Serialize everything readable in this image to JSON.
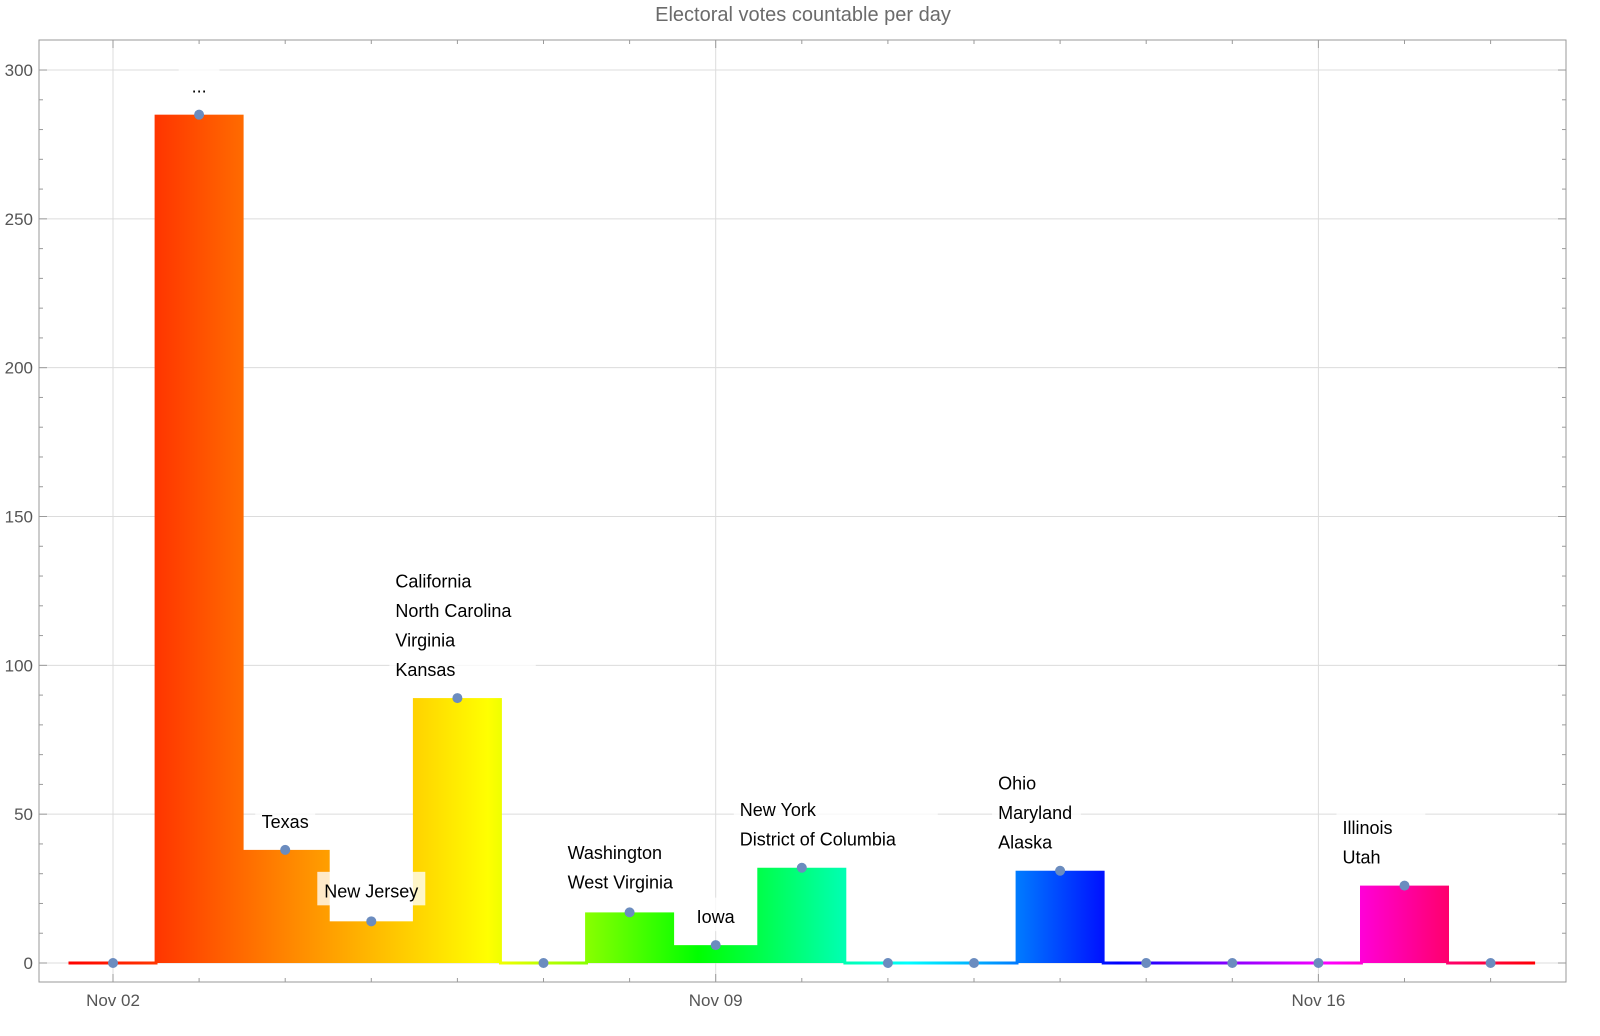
{
  "chart_data": {
    "type": "bar",
    "style": "step histogram with rainbow color gradient and point markers",
    "title": "Electoral votes countable per day",
    "xlabel": "",
    "ylabel": "",
    "x_tick_labels": [
      "Nov 02",
      "Nov 09",
      "Nov 16"
    ],
    "y_ticks": [
      0,
      50,
      100,
      150,
      200,
      250,
      300
    ],
    "ylim": [
      -6,
      310
    ],
    "xlim": [
      "Nov 01",
      "Nov 19"
    ],
    "grid": true,
    "categories": [
      "Nov 02",
      "Nov 03",
      "Nov 04",
      "Nov 05",
      "Nov 06",
      "Nov 07",
      "Nov 08",
      "Nov 09",
      "Nov 10",
      "Nov 11",
      "Nov 12",
      "Nov 13",
      "Nov 14",
      "Nov 15",
      "Nov 16",
      "Nov 17",
      "Nov 18"
    ],
    "values": [
      0,
      285,
      38,
      14,
      89,
      0,
      17,
      6,
      32,
      0,
      0,
      31,
      0,
      0,
      0,
      26,
      0
    ],
    "annotations": [
      {
        "date": "Nov 03",
        "lines": [
          "..."
        ]
      },
      {
        "date": "Nov 04",
        "lines": [
          "Texas"
        ]
      },
      {
        "date": "Nov 05",
        "lines": [
          "New Jersey"
        ]
      },
      {
        "date": "Nov 06",
        "lines": [
          "California",
          "North Carolina",
          "Virginia",
          "Kansas"
        ]
      },
      {
        "date": "Nov 08",
        "lines": [
          "Washington",
          "West Virginia"
        ]
      },
      {
        "date": "Nov 09",
        "lines": [
          "Iowa"
        ]
      },
      {
        "date": "Nov 10",
        "lines": [
          "New York",
          "District of Columbia"
        ]
      },
      {
        "date": "Nov 13",
        "lines": [
          "Ohio",
          "Maryland",
          "Alaska"
        ]
      },
      {
        "date": "Nov 17",
        "lines": [
          "Illinois",
          "Utah"
        ]
      }
    ],
    "colors": {
      "marker": "#6b8cbf",
      "gradient": [
        "#ff0000",
        "#ff8000",
        "#ffff00",
        "#00ff00",
        "#00ffff",
        "#0000ff",
        "#ff00ff",
        "#ff0000"
      ]
    }
  }
}
